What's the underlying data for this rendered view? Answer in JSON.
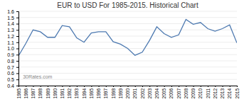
{
  "chart_data": {
    "type": "line",
    "title": "EUR to USD For 1985-2015.  Historical Chart",
    "annotations": [
      "30Rates.com"
    ],
    "x": [
      1985,
      1986,
      1987,
      1988,
      1989,
      1990,
      1991,
      1992,
      1993,
      1994,
      1995,
      1996,
      1997,
      1998,
      1999,
      2000,
      2001,
      2002,
      2003,
      2004,
      2005,
      2006,
      2007,
      2008,
      2009,
      2010,
      2011,
      2012,
      2013,
      2014,
      2015
    ],
    "values": [
      0.88,
      1.08,
      1.3,
      1.27,
      1.18,
      1.18,
      1.37,
      1.35,
      1.17,
      1.1,
      1.25,
      1.27,
      1.27,
      1.11,
      1.07,
      1.0,
      0.89,
      0.94,
      1.13,
      1.35,
      1.24,
      1.18,
      1.22,
      1.47,
      1.39,
      1.42,
      1.32,
      1.28,
      1.32,
      1.38,
      1.09
    ],
    "color": "#4d79b0",
    "xlim": [
      1985,
      2015
    ],
    "xticks": [
      1985,
      1986,
      1987,
      1988,
      1989,
      1990,
      1991,
      1992,
      1993,
      1994,
      1995,
      1996,
      1997,
      1998,
      1999,
      2000,
      2001,
      2002,
      2003,
      2004,
      2005,
      2006,
      2007,
      2008,
      2009,
      2010,
      2011,
      2012,
      2013,
      2014,
      2015
    ],
    "ylim": [
      0.4,
      1.6
    ],
    "yticks": [
      0.4,
      0.5,
      0.6,
      0.7,
      0.8,
      0.9,
      {
        "value": 1.0,
        "label": "1.0"
      },
      1.1,
      1.2,
      1.3,
      1.4,
      1.5,
      1.6
    ],
    "grid": true
  }
}
